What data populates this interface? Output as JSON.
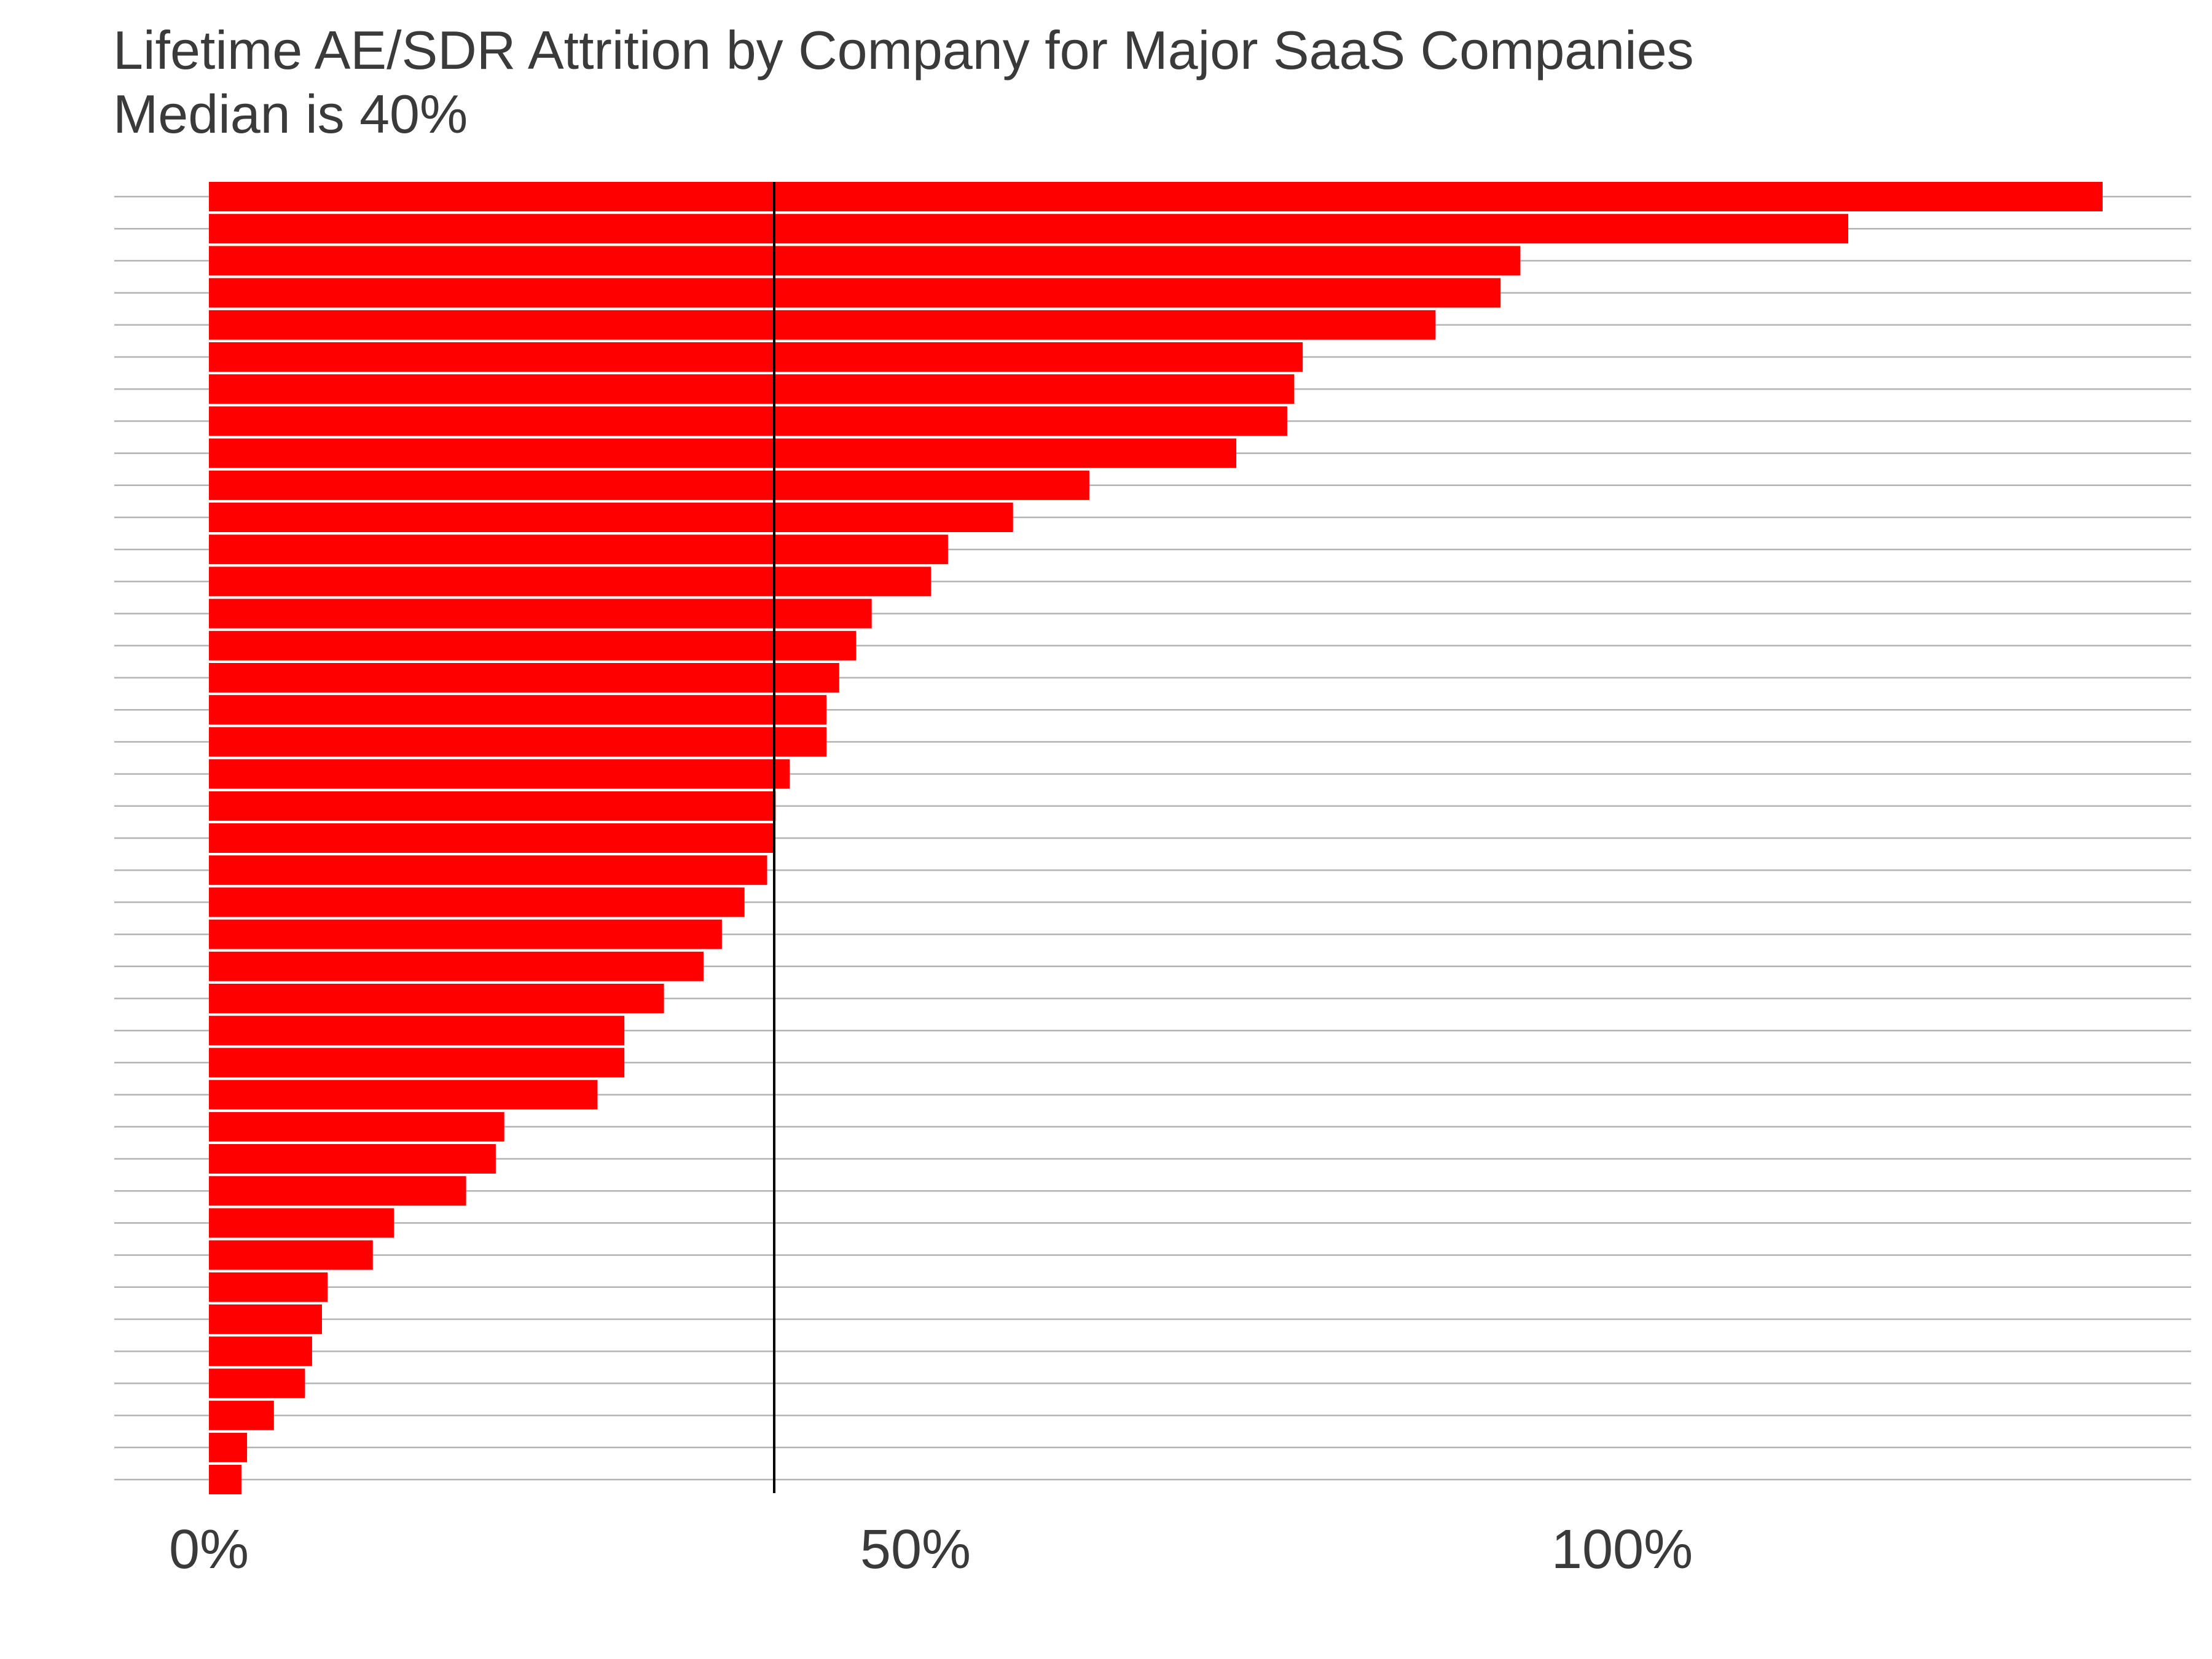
{
  "chart_data": {
    "type": "bar",
    "orientation": "horizontal",
    "title": "Lifetime AE/SDR Attrition by Company for Major SaaS Companies",
    "subtitle": "Median is 40%",
    "xlabel": "",
    "ylabel": "",
    "x_ticks": [
      "0%",
      "50%",
      "100%"
    ],
    "xlim": [
      0,
      1.43
    ],
    "grid": true,
    "legend": "none",
    "reference_line": {
      "value": 0.4
    },
    "values": [
      1.34,
      1.16,
      0.928,
      0.914,
      0.868,
      0.774,
      0.768,
      0.763,
      0.727,
      0.623,
      0.569,
      0.523,
      0.511,
      0.469,
      0.458,
      0.446,
      0.437,
      0.437,
      0.411,
      0.401,
      0.4,
      0.395,
      0.379,
      0.363,
      0.35,
      0.322,
      0.294,
      0.294,
      0.275,
      0.209,
      0.203,
      0.182,
      0.131,
      0.116,
      0.084,
      0.08,
      0.073,
      0.068,
      0.046,
      0.027,
      0.023
    ],
    "colors": {
      "bar": "#ff0000",
      "grid": "#b3b3b3",
      "median_line": "#000000",
      "text": "#3a3a3a"
    }
  }
}
